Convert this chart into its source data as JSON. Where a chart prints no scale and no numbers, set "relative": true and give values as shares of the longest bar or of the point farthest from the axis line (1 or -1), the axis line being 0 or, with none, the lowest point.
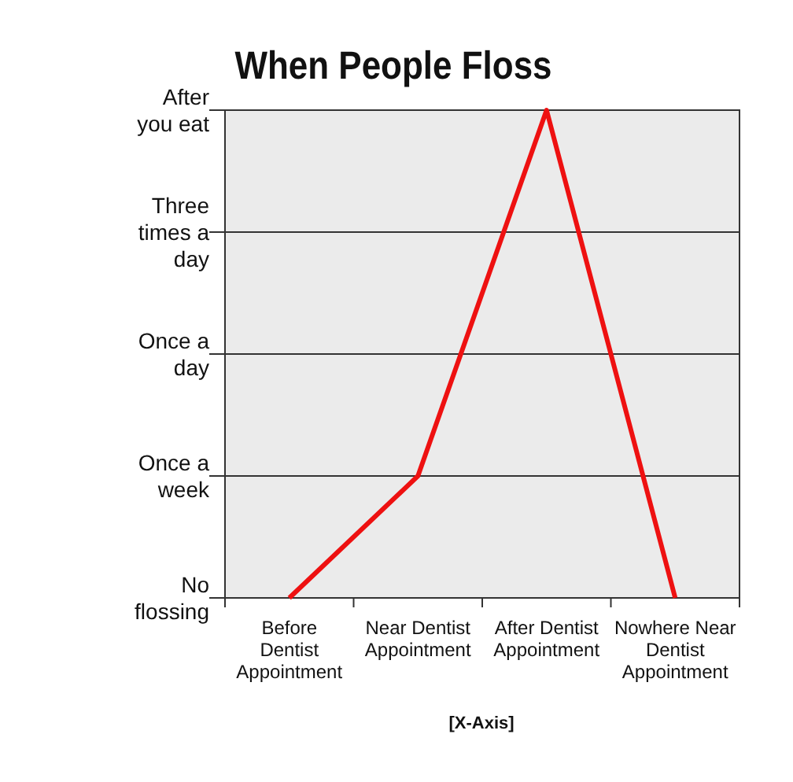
{
  "chart_data": {
    "type": "line",
    "title": "When People Floss",
    "xlabel": "[X-Axis]",
    "categories": [
      "Before Dentist Appointment",
      "Near Dentist Appointment",
      "After Dentist Appointment",
      "Nowhere Near Dentist Appointment"
    ],
    "series": [
      {
        "color": "#ee1111",
        "values": [
          0,
          0.25,
          1,
          0
        ]
      }
    ],
    "relative": true,
    "annotations": [
      "No flossing",
      "Once a week",
      "Once a day",
      "Three times a day",
      "After you eat"
    ],
    "grid": "y",
    "marker": "none",
    "line_style": "solid"
  }
}
